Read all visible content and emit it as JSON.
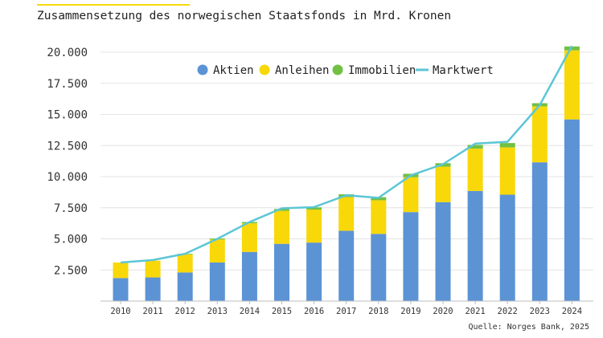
{
  "title": "Zusammensetzung des norwegischen Staatsfonds in Mrd. Kronen",
  "source": "Quelle: Norges Bank, 2025",
  "chart_data": {
    "type": "bar",
    "stacked": true,
    "categories": [
      "2010",
      "2011",
      "2012",
      "2013",
      "2014",
      "2015",
      "2016",
      "2017",
      "2018",
      "2019",
      "2020",
      "2021",
      "2022",
      "2023",
      "2024"
    ],
    "series": [
      {
        "name": "Aktien",
        "color": "#5b93d5",
        "values": [
          1850,
          1900,
          2300,
          3100,
          3950,
          4600,
          4700,
          5650,
          5400,
          7150,
          7950,
          8850,
          8550,
          11150,
          14600
        ]
      },
      {
        "name": "Anleihen",
        "color": "#f8d808",
        "values": [
          1250,
          1350,
          1450,
          1850,
          2300,
          2650,
          2650,
          2700,
          2700,
          2800,
          2850,
          3400,
          3800,
          4500,
          5550
        ]
      },
      {
        "name": "Immobilien",
        "color": "#72c043",
        "values": [
          0,
          0,
          50,
          80,
          100,
          150,
          180,
          230,
          250,
          280,
          280,
          300,
          350,
          250,
          310
        ]
      }
    ],
    "line": {
      "name": "Marktwert",
      "color": "#5cc6d6",
      "values": [
        3100,
        3300,
        3800,
        5000,
        6350,
        7450,
        7550,
        8500,
        8300,
        10100,
        11000,
        12650,
        12800,
        15750,
        20500
      ]
    },
    "yticks": [
      2500,
      5000,
      7500,
      10000,
      12500,
      15000,
      17500,
      20000
    ],
    "ytick_labels": [
      "2.500",
      "5.000",
      "7.500",
      "10.000",
      "12.500",
      "15.000",
      "17.500",
      "20.000"
    ],
    "ylim": [
      0,
      21000
    ],
    "grid": true,
    "legend_position": "top"
  }
}
